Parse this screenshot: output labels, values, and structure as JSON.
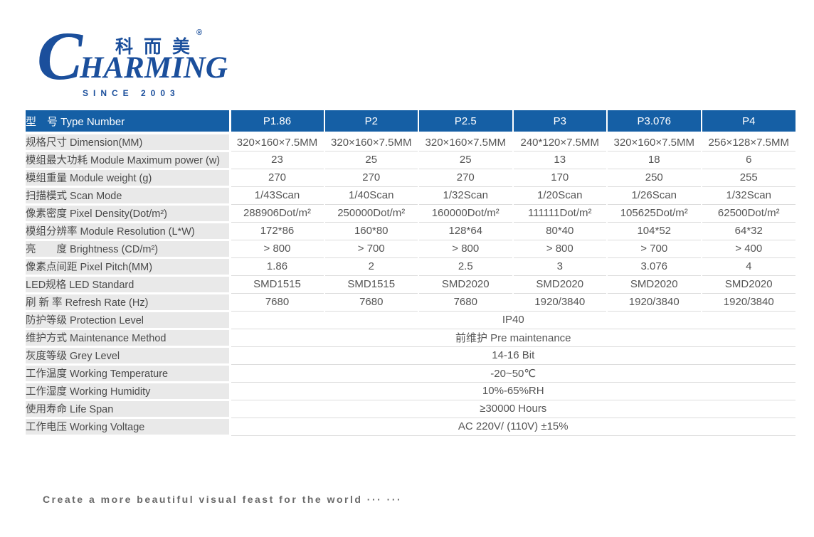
{
  "logo": {
    "c_letter": "C",
    "harming": "HARMING",
    "chinese": "科而美",
    "registered": "®",
    "since": "SINCE 2003"
  },
  "table": {
    "header": {
      "label": "型　号 Type Number",
      "columns": [
        "P1.86",
        "P2",
        "P2.5",
        "P3",
        "P3.076",
        "P4"
      ]
    },
    "rows": [
      {
        "label": "规格尺寸 Dimension(MM)",
        "values": [
          "320×160×7.5MM",
          "320×160×7.5MM",
          "320×160×7.5MM",
          "240*120×7.5MM",
          "320×160×7.5MM",
          "256×128×7.5MM"
        ]
      },
      {
        "label": "模组最大功耗 Module Maximum power (w)",
        "values": [
          "23",
          "25",
          "25",
          "13",
          "18",
          "6"
        ]
      },
      {
        "label": "模组重量 Module weight (g)",
        "values": [
          "270",
          "270",
          "270",
          "170",
          "250",
          "255"
        ]
      },
      {
        "label": "扫描模式 Scan Mode",
        "values": [
          "1/43Scan",
          "1/40Scan",
          "1/32Scan",
          "1/20Scan",
          "1/26Scan",
          "1/32Scan"
        ]
      },
      {
        "label": "像素密度 Pixel Density(Dot/m²)",
        "values": [
          "288906Dot/m²",
          "250000Dot/m²",
          "160000Dot/m²",
          "111111Dot/m²",
          "105625Dot/m²",
          "62500Dot/m²"
        ]
      },
      {
        "label": "模组分辨率 Module Resolution  (L*W)",
        "values": [
          "172*86",
          "160*80",
          "128*64",
          "80*40",
          "104*52",
          "64*32"
        ]
      },
      {
        "label": "亮　　度 Brightness (CD/m²)",
        "values": [
          "> 800",
          "> 700",
          "> 800",
          "> 800",
          "> 700",
          "> 400"
        ]
      },
      {
        "label": "像素点间距 Pixel Pitch(MM)",
        "values": [
          "1.86",
          "2",
          "2.5",
          "3",
          "3.076",
          "4"
        ]
      },
      {
        "label": "LED规格 LED Standard",
        "values": [
          "SMD1515",
          "SMD1515",
          "SMD2020",
          "SMD2020",
          "SMD2020",
          "SMD2020"
        ]
      },
      {
        "label": "刷 新 率 Refresh Rate (Hz)",
        "values": [
          "7680",
          "7680",
          "7680",
          "1920/3840",
          "1920/3840",
          "1920/3840"
        ]
      },
      {
        "label": "防护等级 Protection Level",
        "merged": "IP40"
      },
      {
        "label": "维护方式 Maintenance Method",
        "merged": "前维护 Pre maintenance"
      },
      {
        "label": "灰度等级 Grey Level",
        "merged": "14-16 Bit"
      },
      {
        "label": "工作温度 Working Temperature",
        "merged": "-20~50℃"
      },
      {
        "label": "工作湿度 Working Humidity",
        "merged": "10%-65%RH"
      },
      {
        "label": "使用寿命 Life Span",
        "merged": "≥30000 Hours"
      },
      {
        "label": "工作电压 Working Voltage",
        "merged": "AC 220V/ (110V) ±15%"
      }
    ]
  },
  "footer": {
    "slogan": "Create a more beautiful visual feast for the world ··· ···"
  },
  "colors": {
    "header_blue": "#155fa5",
    "logo_blue": "#1b4f9c",
    "label_row_bg": "#e9e9e9",
    "label_text": "#4a4a4a",
    "value_text": "#555555",
    "row_divider": "#dcdcdc",
    "footer_text": "#6a6a6a"
  }
}
